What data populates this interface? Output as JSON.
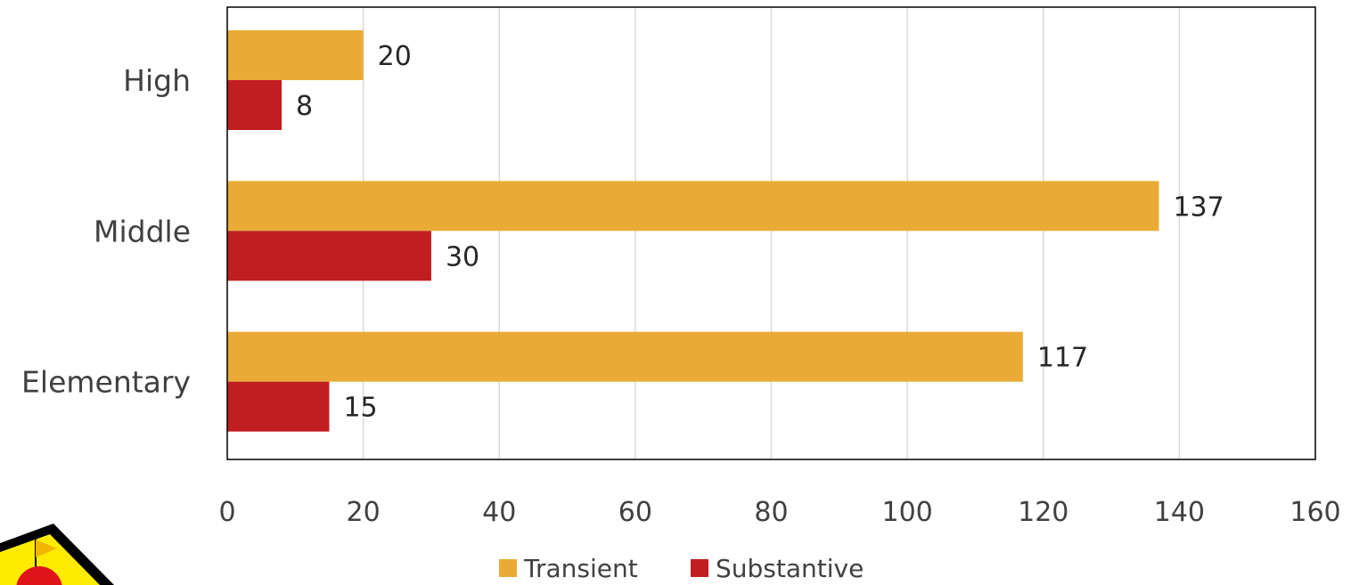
{
  "chart_data": {
    "type": "bar",
    "orientation": "horizontal",
    "categories": [
      "High",
      "Middle",
      "Elementary"
    ],
    "series": [
      {
        "name": "Transient",
        "values": [
          20,
          137,
          117
        ],
        "color": "#EAAB36"
      },
      {
        "name": "Substantive",
        "values": [
          8,
          30,
          15
        ],
        "color": "#C01E20"
      }
    ],
    "xlim": [
      0,
      160
    ],
    "xticks": [
      0,
      20,
      40,
      60,
      80,
      100,
      120,
      140,
      160
    ],
    "xtick_labels": [
      "0",
      "20",
      "40",
      "60",
      "80",
      "100",
      "120",
      "140",
      "160"
    ],
    "data_labels": true,
    "grid": "vertical",
    "legend_position": "bottom",
    "title": "",
    "xlabel": "",
    "ylabel": ""
  },
  "legend": {
    "items": [
      {
        "label": "Transient",
        "color": "#EAAB36"
      },
      {
        "label": "Substantive",
        "color": "#C01E20"
      }
    ]
  },
  "logo_icon": "warning-flag-icon"
}
